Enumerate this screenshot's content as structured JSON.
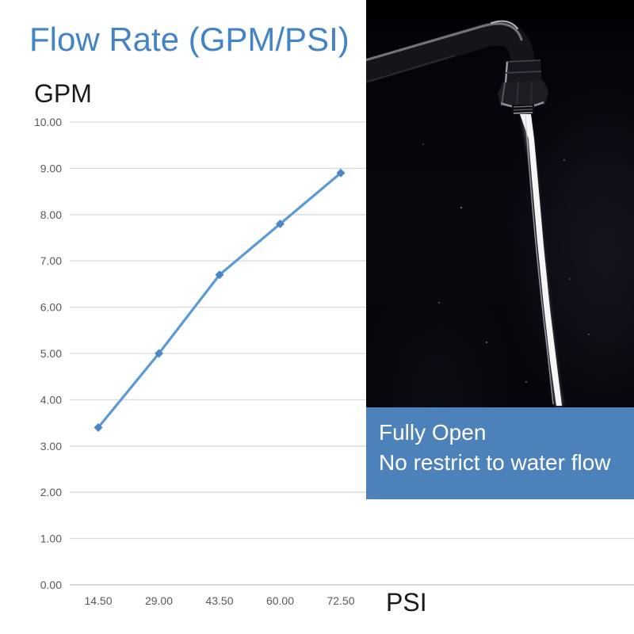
{
  "header": {
    "title": "Flow Rate (GPM/PSI)"
  },
  "axes": {
    "y_unit_label": "GPM",
    "x_unit_label": "PSI"
  },
  "photo": {
    "description": "faucet-pipe-with-water-stream",
    "caption": {
      "line1": "Fully Open",
      "line2": "No restrict to water flow"
    }
  },
  "colors": {
    "title": "#4384c6",
    "line": "#5a9ad6",
    "marker": "#4d86c4",
    "gridline": "#d9d9d9",
    "axis_line": "#bfbfbf",
    "tick_label": "#595959",
    "caption_bg": "#4c81b9",
    "caption_text": "#ffffff"
  },
  "chart_data": {
    "type": "line",
    "title": "Flow Rate (GPM/PSI)",
    "xlabel": "PSI",
    "ylabel": "GPM",
    "categories": [
      "14.50",
      "29.00",
      "43.50",
      "60.00",
      "72.50"
    ],
    "x": [
      14.5,
      29.0,
      43.5,
      60.0,
      72.5
    ],
    "values": [
      3.4,
      5.0,
      6.7,
      7.8,
      8.9
    ],
    "ylim": [
      0,
      10
    ],
    "ytick_step": 1.0,
    "ytick_labels": [
      "0.00",
      "1.00",
      "2.00",
      "3.00",
      "4.00",
      "5.00",
      "6.00",
      "7.00",
      "8.00",
      "9.00",
      "10.00"
    ],
    "grid": true,
    "legend": false,
    "marker": "diamond"
  }
}
